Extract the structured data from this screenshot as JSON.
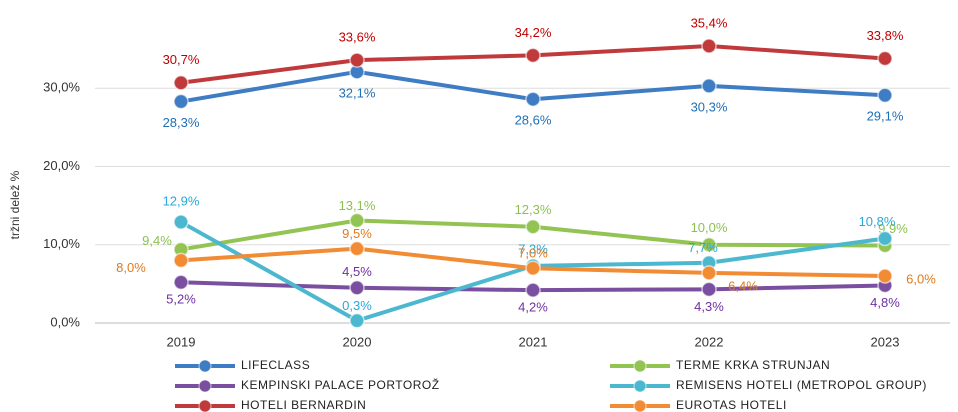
{
  "chart_data": {
    "type": "line",
    "y_label": "tržni delež %",
    "categories": [
      "2019",
      "2020",
      "2021",
      "2022",
      "2023"
    ],
    "ylim": [
      0,
      40
    ],
    "yticks": [
      {
        "value": 0,
        "label": "0,0%"
      },
      {
        "value": 10,
        "label": "10,0%"
      },
      {
        "value": 20,
        "label": "20,0%"
      },
      {
        "value": 30,
        "label": "30,0%"
      }
    ],
    "grid": true,
    "series": [
      {
        "name": "LIFECLASS",
        "color": "#3e7cc4",
        "label_color": "#1f6fb5",
        "values": [
          28.3,
          32.1,
          28.6,
          30.3,
          29.1
        ],
        "value_labels": [
          "28,3%",
          "32,1%",
          "28,6%",
          "30,3%",
          "29,1%"
        ]
      },
      {
        "name": "TERME KRKA STRUNJAN",
        "color": "#92c353",
        "label_color": "#8cc152",
        "values": [
          9.4,
          13.1,
          12.3,
          10.0,
          9.9
        ],
        "value_labels": [
          "9,4%",
          "13,1%",
          "12,3%",
          "10,0%",
          "9,9%"
        ]
      },
      {
        "name": "KEMPINSKI PALACE PORTOROŽ",
        "color": "#7a4fa0",
        "label_color": "#7030a0",
        "values": [
          5.2,
          4.5,
          4.2,
          4.3,
          4.8
        ],
        "value_labels": [
          "5,2%",
          "4,5%",
          "4,2%",
          "4,3%",
          "4,8%"
        ]
      },
      {
        "name": "REMISENS HOTELI (METROPOL GROUP)",
        "color": "#4bb8d0",
        "label_color": "#2aa8d8",
        "values": [
          12.9,
          0.3,
          7.3,
          7.7,
          10.8
        ],
        "value_labels": [
          "12,9%",
          "0,3%",
          "7,3%",
          "7,7%",
          "10,8%"
        ]
      },
      {
        "name": "HOTELI BERNARDIN",
        "color": "#c0393b",
        "label_color": "#c00000",
        "values": [
          30.7,
          33.6,
          34.2,
          35.4,
          33.8
        ],
        "value_labels": [
          "30,7%",
          "33,6%",
          "34,2%",
          "35,4%",
          "33,8%"
        ]
      },
      {
        "name": "EUROTAS HOTELI",
        "color": "#f28c34",
        "label_color": "#e07a1c",
        "values": [
          8.0,
          9.5,
          7.0,
          6.4,
          6.0
        ],
        "value_labels": [
          "8,0%",
          "9,5%",
          "7,0%",
          "6,4%",
          "6,0%"
        ]
      }
    ]
  }
}
